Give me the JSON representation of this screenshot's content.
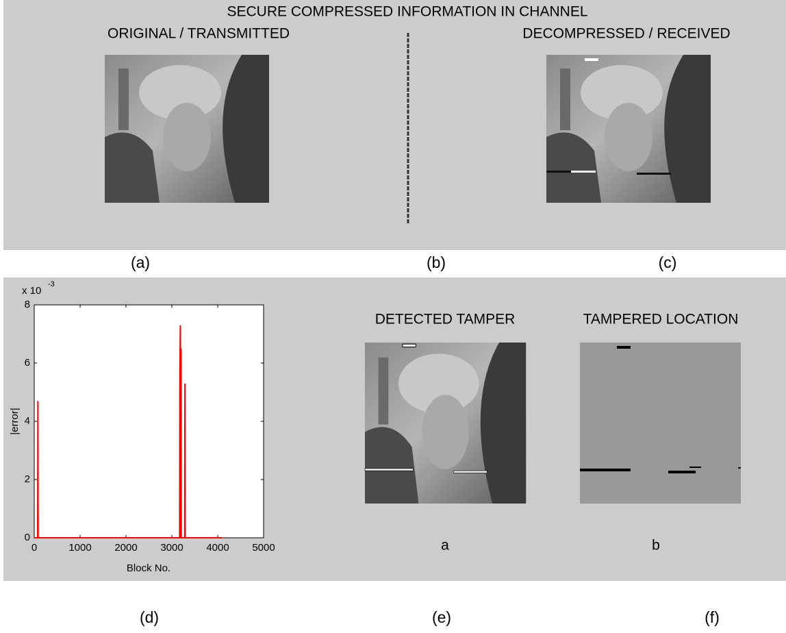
{
  "top_panel": {
    "title": "SECURE COMPRESSED INFORMATION IN CHANNEL",
    "left_heading": "ORIGINAL / TRANSMITTED",
    "right_heading": "DECOMPRESSED / RECEIVED"
  },
  "panel_labels": [
    "(a)",
    "(b)",
    "(c)",
    "(d)",
    "(e)",
    "(f)"
  ],
  "chart_data": {
    "type": "line",
    "x_label": "Block No.",
    "y_label": "|error|",
    "y_scale_base": "x 10",
    "y_scale_exponent": "-3",
    "xlim": [
      0,
      5000
    ],
    "ylim": [
      0,
      8
    ],
    "xticks": [
      0,
      1000,
      2000,
      3000,
      4000,
      5000
    ],
    "yticks": [
      0,
      2,
      4,
      6,
      8
    ],
    "series": [
      {
        "color": "#ff0000",
        "x": [
          0,
          75,
          80,
          85,
          3170,
          3175,
          3185,
          3190,
          3200,
          3205,
          3280,
          3285,
          3290,
          4096
        ],
        "values": [
          0,
          0,
          4.7,
          0,
          0,
          5.7,
          7.3,
          0,
          6.5,
          0,
          0,
          5.3,
          0,
          0
        ]
      }
    ]
  },
  "detail_panel": {
    "left_heading": "DETECTED TAMPER",
    "right_heading": "TAMPERED LOCATION",
    "left_caption": "a",
    "right_caption": "b"
  }
}
